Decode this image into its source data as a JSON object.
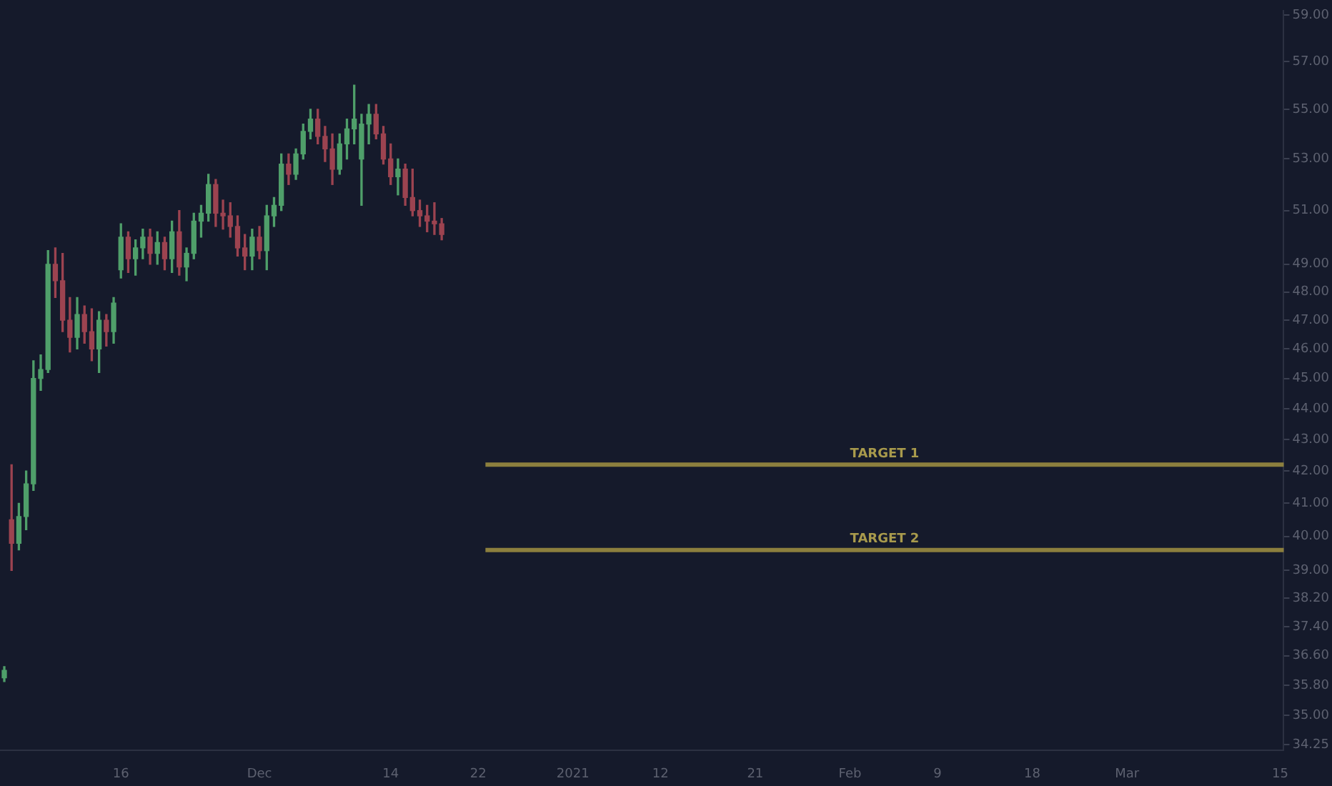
{
  "chart_data": {
    "type": "candlestick",
    "log": "y",
    "categories": [
      null,
      null,
      null,
      null,
      null,
      null,
      null,
      null,
      null,
      null,
      null,
      null,
      null,
      null,
      null,
      null,
      "16",
      null,
      null,
      null,
      null,
      null,
      null,
      null,
      null,
      null,
      null,
      null,
      null,
      null,
      null,
      null,
      null,
      null,
      null,
      "Dec",
      null,
      null,
      null,
      null,
      null,
      null,
      null,
      null,
      null,
      null,
      null,
      null,
      null,
      null,
      null,
      null,
      null,
      "14",
      null,
      null,
      null,
      null,
      null,
      null,
      null,
      null,
      null,
      null,
      null,
      "22",
      null,
      null,
      null,
      null,
      null,
      null,
      null,
      null,
      null,
      null,
      null,
      null,
      "2021",
      null,
      null,
      null,
      null,
      null,
      null,
      null,
      null,
      null,
      null,
      null,
      "12",
      null,
      null,
      null,
      null,
      null,
      null,
      null,
      null,
      null,
      null,
      null,
      null,
      "21",
      null,
      null,
      null,
      null,
      null,
      null,
      null,
      null,
      null,
      null,
      null,
      null,
      "Feb",
      null,
      null,
      null,
      null,
      null,
      null,
      null,
      null,
      null,
      null,
      null,
      "9",
      null,
      null,
      null,
      null,
      null,
      null,
      null,
      null,
      null,
      null,
      null,
      null,
      "18",
      null,
      null,
      null,
      null,
      null,
      null,
      null,
      null,
      null,
      null,
      null,
      null,
      "Mar",
      null,
      null,
      null,
      null,
      null,
      null,
      null,
      null,
      null,
      null,
      null,
      null,
      null,
      null,
      null,
      null,
      null,
      null,
      null,
      null,
      "15"
    ],
    "ohlc": [
      [
        36.0,
        36.3,
        35.9,
        36.2
      ],
      [
        40.5,
        42.2,
        39.0,
        39.8
      ],
      [
        39.8,
        41.0,
        39.6,
        40.6
      ],
      [
        40.6,
        42.0,
        40.2,
        41.6
      ],
      [
        41.6,
        45.6,
        41.4,
        45.0
      ],
      [
        45.0,
        45.8,
        44.6,
        45.3
      ],
      [
        45.3,
        49.5,
        45.2,
        49.0
      ],
      [
        49.0,
        49.6,
        47.8,
        48.4
      ],
      [
        48.4,
        49.4,
        46.6,
        47.0
      ],
      [
        47.0,
        47.8,
        45.9,
        46.4
      ],
      [
        46.4,
        47.8,
        46.0,
        47.2
      ],
      [
        47.2,
        47.5,
        46.2,
        46.6
      ],
      [
        46.6,
        47.4,
        45.6,
        46.0
      ],
      [
        46.0,
        47.3,
        45.2,
        47.0
      ],
      [
        47.0,
        47.2,
        46.1,
        46.6
      ],
      [
        46.6,
        47.8,
        46.2,
        47.6
      ],
      [
        48.8,
        50.5,
        48.5,
        50.0
      ],
      [
        50.0,
        50.2,
        48.7,
        49.2
      ],
      [
        49.2,
        49.9,
        48.6,
        49.6
      ],
      [
        49.6,
        50.3,
        49.2,
        50.0
      ],
      [
        50.0,
        50.3,
        49.0,
        49.4
      ],
      [
        49.4,
        50.2,
        49.0,
        49.8
      ],
      [
        49.8,
        50.0,
        48.8,
        49.2
      ],
      [
        49.2,
        50.6,
        48.7,
        50.2
      ],
      [
        50.2,
        51.0,
        48.6,
        48.9
      ],
      [
        48.9,
        49.6,
        48.4,
        49.4
      ],
      [
        49.4,
        50.9,
        49.2,
        50.6
      ],
      [
        50.6,
        51.2,
        50.0,
        50.9
      ],
      [
        50.9,
        52.4,
        50.6,
        52.0
      ],
      [
        52.0,
        52.2,
        50.4,
        50.9
      ],
      [
        50.9,
        51.4,
        50.3,
        50.8
      ],
      [
        50.8,
        51.3,
        50.0,
        50.4
      ],
      [
        50.4,
        50.8,
        49.3,
        49.6
      ],
      [
        49.6,
        50.1,
        48.8,
        49.3
      ],
      [
        49.3,
        50.3,
        48.8,
        50.0
      ],
      [
        50.0,
        50.4,
        49.2,
        49.5
      ],
      [
        49.5,
        51.2,
        48.8,
        50.8
      ],
      [
        50.8,
        51.5,
        50.4,
        51.2
      ],
      [
        51.2,
        53.2,
        51.0,
        52.8
      ],
      [
        52.8,
        53.2,
        52.0,
        52.4
      ],
      [
        52.4,
        53.4,
        52.2,
        53.2
      ],
      [
        53.2,
        54.4,
        53.0,
        54.1
      ],
      [
        54.1,
        55.0,
        53.8,
        54.6
      ],
      [
        54.6,
        55.0,
        53.6,
        53.9
      ],
      [
        53.9,
        54.3,
        52.9,
        53.4
      ],
      [
        53.4,
        54.0,
        52.0,
        52.6
      ],
      [
        52.6,
        54.0,
        52.4,
        53.6
      ],
      [
        53.6,
        54.6,
        53.0,
        54.2
      ],
      [
        54.2,
        56.0,
        53.6,
        54.6
      ],
      [
        53.0,
        54.8,
        51.2,
        54.4
      ],
      [
        54.4,
        55.2,
        53.6,
        54.8
      ],
      [
        54.8,
        55.2,
        53.8,
        54.0
      ],
      [
        54.0,
        54.3,
        52.8,
        53.0
      ],
      [
        53.0,
        53.6,
        52.0,
        52.3
      ],
      [
        52.3,
        53.0,
        51.6,
        52.6
      ],
      [
        52.6,
        52.8,
        51.2,
        51.5
      ],
      [
        51.5,
        52.6,
        50.8,
        51.0
      ],
      [
        51.0,
        51.4,
        50.4,
        50.8
      ],
      [
        50.8,
        51.2,
        50.2,
        50.6
      ],
      [
        50.6,
        51.3,
        50.1,
        50.5
      ],
      [
        50.5,
        50.7,
        49.9,
        50.1
      ],
      null,
      null,
      null,
      null,
      null,
      null,
      null,
      null,
      null,
      null,
      null,
      null,
      null,
      null,
      null,
      null,
      null,
      null,
      null,
      null,
      null,
      null,
      null,
      null,
      null,
      null,
      null,
      null,
      null,
      null,
      null,
      null,
      null,
      null,
      null,
      null,
      null,
      null,
      null,
      null,
      null,
      null,
      null,
      null,
      null,
      null,
      null,
      null,
      null,
      null,
      null,
      null,
      null,
      null,
      null,
      null,
      null,
      null,
      null,
      null,
      null,
      null,
      null,
      null,
      null,
      null,
      null,
      null,
      null,
      null,
      null,
      null,
      null,
      null,
      null,
      null,
      null,
      null,
      null,
      null,
      null,
      null,
      null,
      null,
      null,
      null,
      null,
      null,
      null,
      null,
      null,
      null,
      null,
      null,
      null,
      null,
      null,
      null,
      null,
      null,
      null,
      null,
      null,
      null,
      null,
      null,
      null,
      null,
      null,
      null,
      null,
      null,
      null,
      null,
      null
    ],
    "ylim": [
      34.1,
      59.2
    ],
    "yticks": [
      {
        "value": 34.25,
        "label": "34.25"
      },
      {
        "value": 35,
        "label": "35.00"
      },
      {
        "value": 35.8,
        "label": "35.80"
      },
      {
        "value": 36.6,
        "label": "36.60"
      },
      {
        "value": 37.4,
        "label": "37.40"
      },
      {
        "value": 38.2,
        "label": "38.20"
      },
      {
        "value": 39,
        "label": "39.00"
      },
      {
        "value": 40,
        "label": "40.00"
      },
      {
        "value": 41,
        "label": "41.00"
      },
      {
        "value": 42,
        "label": "42.00"
      },
      {
        "value": 43,
        "label": "43.00"
      },
      {
        "value": 44,
        "label": "44.00"
      },
      {
        "value": 45,
        "label": "45.00"
      },
      {
        "value": 46,
        "label": "46.00"
      },
      {
        "value": 47,
        "label": "47.00"
      },
      {
        "value": 48,
        "label": "48.00"
      },
      {
        "value": 49,
        "label": "49.00"
      },
      {
        "value": 51,
        "label": "51.00"
      },
      {
        "value": 53,
        "label": "53.00"
      },
      {
        "value": 55,
        "label": "55.00"
      },
      {
        "value": 57,
        "label": "57.00"
      },
      {
        "value": 59,
        "label": "59.00"
      }
    ],
    "ref_lines": [
      {
        "axis": "y",
        "value": 42.2,
        "label": "TARGET 1",
        "color": "#8c7f3e"
      },
      {
        "axis": "y",
        "value": 39.6,
        "label": "TARGET 2",
        "color": "#8c7f3e"
      }
    ]
  }
}
